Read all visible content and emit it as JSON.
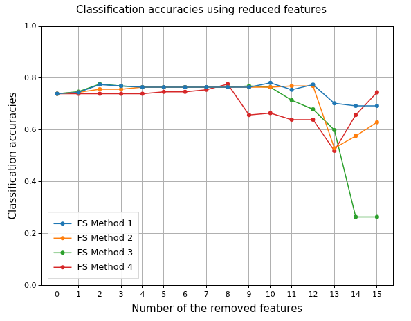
{
  "chart_data": {
    "type": "line",
    "title": "Classification accuracies using reduced features",
    "x_label": "Number of the removed features",
    "y_label": "Classification accuracies",
    "x": [
      0,
      1,
      2,
      3,
      4,
      5,
      6,
      7,
      8,
      9,
      10,
      11,
      12,
      13,
      14,
      15
    ],
    "series": [
      {
        "name": "FS Method 1",
        "color": "#1f77b4",
        "marker": "circle",
        "line_style": "solid",
        "values": [
          0.74,
          0.745,
          0.775,
          0.77,
          0.765,
          0.765,
          0.765,
          0.765,
          0.765,
          0.765,
          0.782,
          0.755,
          0.775,
          0.703,
          0.693,
          0.693
        ]
      },
      {
        "name": "FS Method 2",
        "color": "#ff7f0e",
        "marker": "circle",
        "line_style": "solid",
        "values": [
          0.74,
          0.745,
          0.757,
          0.757,
          0.765,
          0.765,
          0.765,
          0.765,
          0.765,
          0.765,
          0.765,
          0.77,
          0.77,
          0.53,
          0.577,
          0.63
        ]
      },
      {
        "name": "FS Method 3",
        "color": "#2ca02c",
        "marker": "circle",
        "line_style": "solid",
        "values": [
          0.74,
          0.748,
          0.777,
          0.77,
          0.765,
          0.765,
          0.765,
          0.765,
          0.765,
          0.77,
          0.765,
          0.715,
          0.68,
          0.6,
          0.265,
          0.265
        ]
      },
      {
        "name": "FS Method 4",
        "color": "#d62728",
        "marker": "circle",
        "line_style": "solid",
        "values": [
          0.74,
          0.74,
          0.74,
          0.74,
          0.74,
          0.747,
          0.747,
          0.755,
          0.777,
          0.658,
          0.665,
          0.64,
          0.64,
          0.52,
          0.658,
          0.745
        ]
      }
    ],
    "xlim": [
      -0.75,
      15.75
    ],
    "xticks": [
      0,
      1,
      2,
      3,
      4,
      5,
      6,
      7,
      8,
      9,
      10,
      11,
      12,
      13,
      14,
      15
    ],
    "ylim": [
      0,
      1
    ],
    "yticks": [
      {
        "value": 0,
        "label": "0.0"
      },
      0.2,
      0.4,
      0.6,
      0.8,
      {
        "value": 1,
        "label": "1.0"
      }
    ],
    "grid": true,
    "legend": "lower left"
  }
}
